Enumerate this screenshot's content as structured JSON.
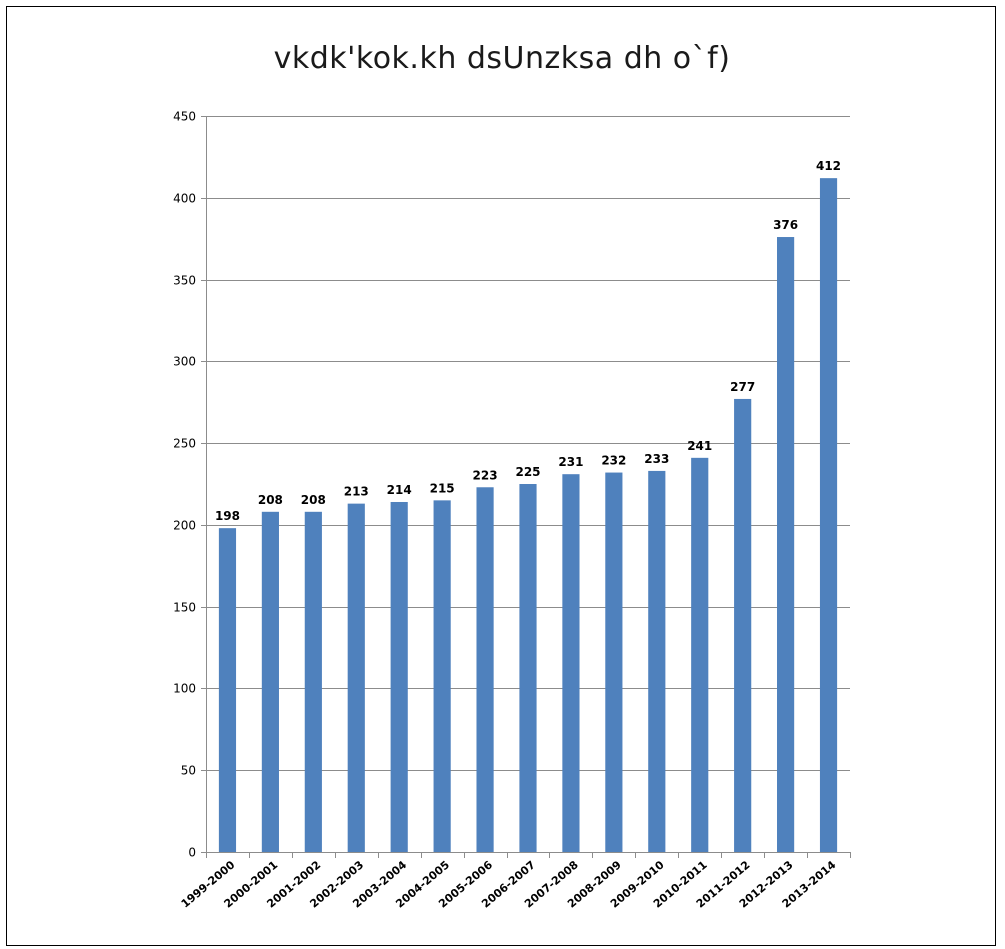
{
  "chart_data": {
    "type": "bar",
    "title": "vkdk'kok.kh dsUnzksa dh o`f)",
    "xlabel": "",
    "ylabel": "",
    "categories": [
      "1999-2000",
      "2000-2001",
      "2001-2002",
      "2002-2003",
      "2003-2004",
      "2004-2005",
      "2005-2006",
      "2006-2007",
      "2007-2008",
      "2008-2009",
      "2009-2010",
      "2010-2011",
      "2011-2012",
      "2012-2013",
      "2013-2014"
    ],
    "values": [
      198,
      208,
      208,
      213,
      214,
      215,
      223,
      225,
      231,
      232,
      233,
      241,
      277,
      376,
      412
    ],
    "data_labels": [
      "198",
      "208",
      "208",
      "213",
      "214",
      "215",
      "223",
      "225",
      "231",
      "232",
      "233",
      "241",
      "277",
      "376",
      "412"
    ],
    "ylim": [
      0,
      450
    ],
    "yticks": [
      0,
      50,
      100,
      150,
      200,
      250,
      300,
      350,
      400,
      450
    ],
    "ytick_labels": [
      "0",
      "50",
      "100",
      "150",
      "200",
      "250",
      "300",
      "350",
      "400",
      "450"
    ],
    "grid": true,
    "legend": "none",
    "colors": {
      "bar": "#4F81BD",
      "grid": "#8C8C8C",
      "axis": "#8C8C8C"
    }
  }
}
